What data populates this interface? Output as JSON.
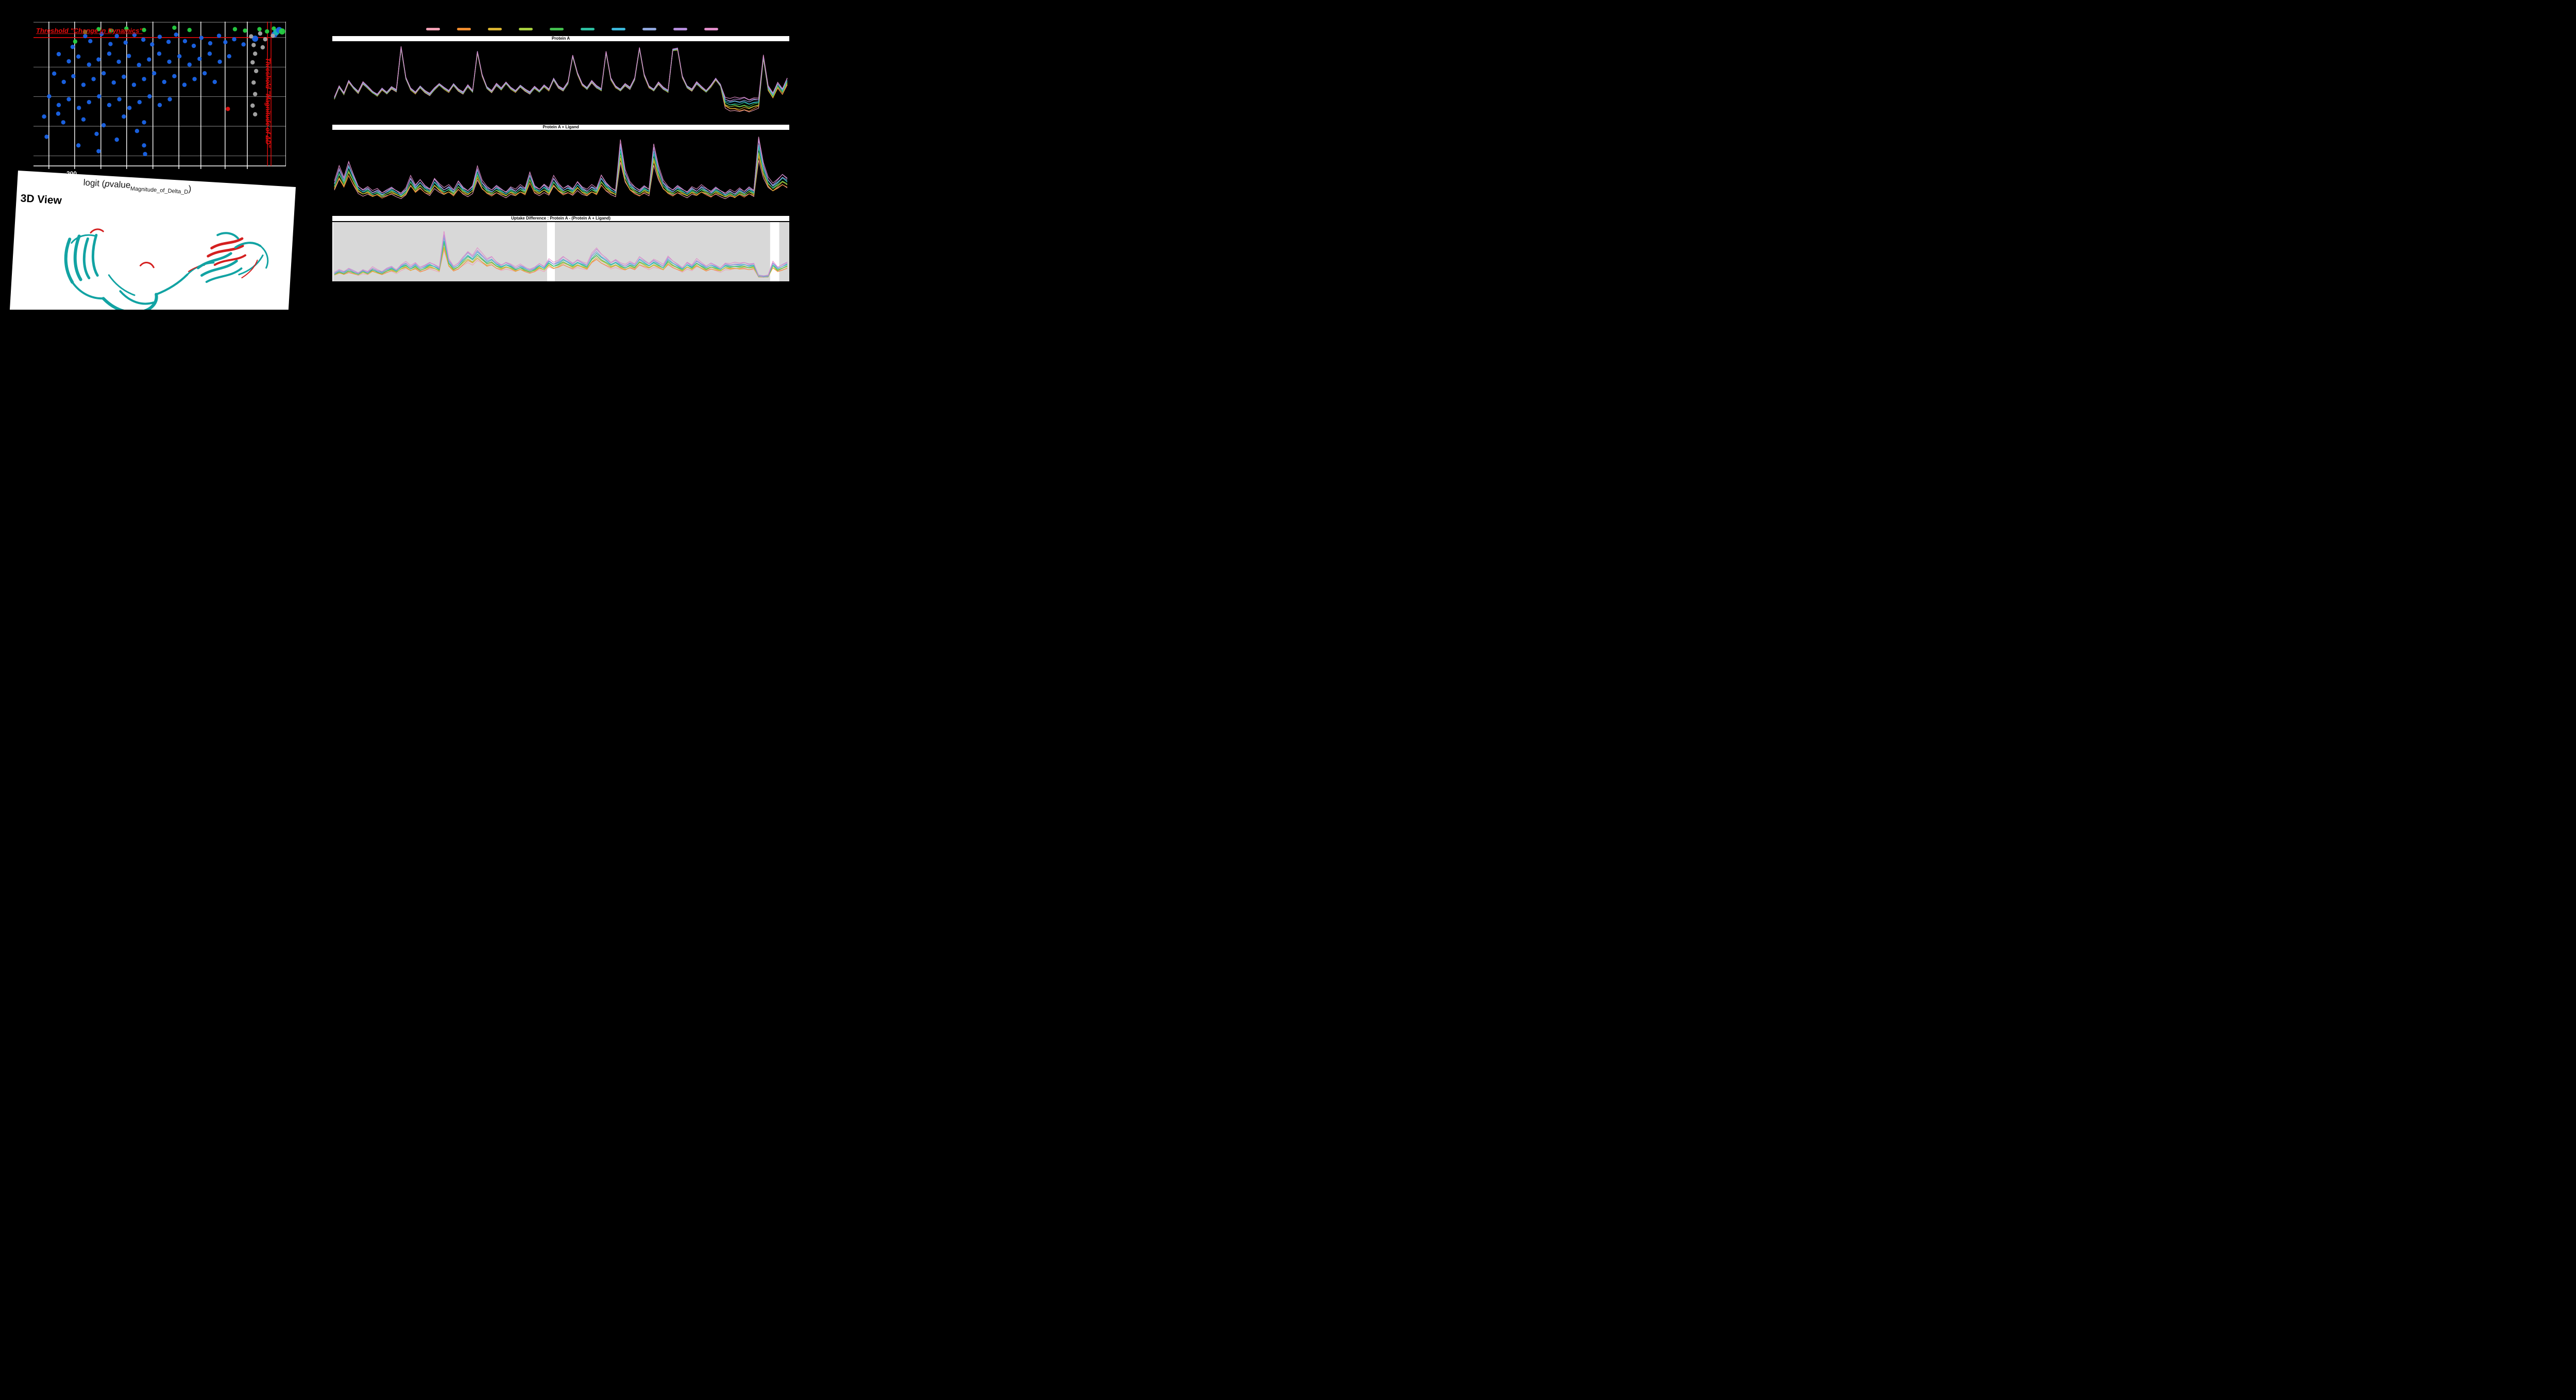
{
  "palette": [
    "#f2a0b4",
    "#f08c2e",
    "#d9b330",
    "#a8cf3e",
    "#43bf4e",
    "#2cbfa0",
    "#3ab6d9",
    "#8fa6dd",
    "#b48cdb",
    "#e08cc8"
  ],
  "view3d": {
    "title": "3D View",
    "ribbon_teal": "#12a3a3",
    "ribbon_red": "#d42020"
  },
  "chart_data": [
    {
      "type": "scatter",
      "threshold_label_h": "Threshold \"Change in Dynamics\"",
      "threshold_label_v": "Threshold \"Magnitude of ΔD\"",
      "x_tick_label": "−200",
      "xlabel": {
        "pre": "logit (",
        "p": "p",
        "mid": "value",
        "sub": "Magnitude_of_Delta_D",
        "post": ")"
      },
      "colors": {
        "b": "#1a64e8",
        "g": "#27d042",
        "y": "#a9a9a9",
        "r": "#e81212",
        "t": "#16b8ae",
        "threshold": "#e80c0c",
        "grid": "#ffffff"
      },
      "threshold_y": 0.11,
      "threshold_x": [
        0.927,
        0.941
      ],
      "grid_x": [
        0.061,
        0.163,
        0.267,
        0.369,
        0.473,
        0.576,
        0.663,
        0.759,
        0.847
      ],
      "grid_y": [
        0.004,
        0.11,
        0.315,
        0.52,
        0.725,
        0.93
      ],
      "points": [
        [
          0.155,
          0.175,
          "b"
        ],
        [
          0.205,
          0.1,
          "b"
        ],
        [
          0.225,
          0.135,
          "b"
        ],
        [
          0.27,
          0.085,
          "b"
        ],
        [
          0.305,
          0.155,
          "b"
        ],
        [
          0.33,
          0.1,
          "b"
        ],
        [
          0.365,
          0.145,
          "b"
        ],
        [
          0.4,
          0.092,
          "b"
        ],
        [
          0.435,
          0.125,
          "b"
        ],
        [
          0.47,
          0.158,
          "b"
        ],
        [
          0.5,
          0.105,
          "b"
        ],
        [
          0.535,
          0.14,
          "b"
        ],
        [
          0.565,
          0.09,
          "b"
        ],
        [
          0.6,
          0.135,
          "b"
        ],
        [
          0.635,
          0.168,
          "b"
        ],
        [
          0.665,
          0.112,
          "b"
        ],
        [
          0.7,
          0.15,
          "b"
        ],
        [
          0.735,
          0.098,
          "b"
        ],
        [
          0.76,
          0.142,
          "b"
        ],
        [
          0.795,
          0.122,
          "b"
        ],
        [
          0.1,
          0.225,
          "b"
        ],
        [
          0.14,
          0.275,
          "b"
        ],
        [
          0.178,
          0.242,
          "b"
        ],
        [
          0.22,
          0.298,
          "b"
        ],
        [
          0.258,
          0.262,
          "b"
        ],
        [
          0.3,
          0.222,
          "b"
        ],
        [
          0.338,
          0.278,
          "b"
        ],
        [
          0.378,
          0.238,
          "b"
        ],
        [
          0.418,
          0.3,
          "b"
        ],
        [
          0.458,
          0.262,
          "b"
        ],
        [
          0.498,
          0.222,
          "b"
        ],
        [
          0.538,
          0.278,
          "b"
        ],
        [
          0.578,
          0.24,
          "b"
        ],
        [
          0.618,
          0.298,
          "b"
        ],
        [
          0.658,
          0.258,
          "b"
        ],
        [
          0.698,
          0.222,
          "b"
        ],
        [
          0.738,
          0.278,
          "b"
        ],
        [
          0.775,
          0.24,
          "b"
        ],
        [
          0.082,
          0.36,
          "b"
        ],
        [
          0.12,
          0.418,
          "b"
        ],
        [
          0.158,
          0.378,
          "b"
        ],
        [
          0.198,
          0.438,
          "b"
        ],
        [
          0.238,
          0.398,
          "b"
        ],
        [
          0.278,
          0.358,
          "b"
        ],
        [
          0.318,
          0.422,
          "b"
        ],
        [
          0.358,
          0.382,
          "b"
        ],
        [
          0.398,
          0.438,
          "b"
        ],
        [
          0.438,
          0.398,
          "b"
        ],
        [
          0.478,
          0.358,
          "b"
        ],
        [
          0.518,
          0.418,
          "b"
        ],
        [
          0.558,
          0.378,
          "b"
        ],
        [
          0.598,
          0.438,
          "b"
        ],
        [
          0.638,
          0.398,
          "b"
        ],
        [
          0.678,
          0.358,
          "b"
        ],
        [
          0.718,
          0.418,
          "b"
        ],
        [
          0.062,
          0.518,
          "b"
        ],
        [
          0.1,
          0.578,
          "b"
        ],
        [
          0.14,
          0.538,
          "b"
        ],
        [
          0.18,
          0.598,
          "b"
        ],
        [
          0.22,
          0.558,
          "b"
        ],
        [
          0.26,
          0.518,
          "b"
        ],
        [
          0.3,
          0.578,
          "b"
        ],
        [
          0.34,
          0.538,
          "b"
        ],
        [
          0.38,
          0.598,
          "b"
        ],
        [
          0.42,
          0.558,
          "b"
        ],
        [
          0.46,
          0.518,
          "b"
        ],
        [
          0.5,
          0.578,
          "b"
        ],
        [
          0.54,
          0.538,
          "b"
        ],
        [
          0.042,
          0.658,
          "b"
        ],
        [
          0.118,
          0.698,
          "b"
        ],
        [
          0.198,
          0.678,
          "b"
        ],
        [
          0.278,
          0.718,
          "b"
        ],
        [
          0.358,
          0.658,
          "b"
        ],
        [
          0.438,
          0.698,
          "b"
        ],
        [
          0.25,
          0.778,
          "b"
        ],
        [
          0.33,
          0.818,
          "b"
        ],
        [
          0.41,
          0.758,
          "b"
        ],
        [
          0.178,
          0.858,
          "b"
        ],
        [
          0.258,
          0.898,
          "b"
        ],
        [
          0.438,
          0.858,
          "b"
        ],
        [
          0.442,
          0.918,
          "b"
        ],
        [
          0.098,
          0.638,
          "b"
        ],
        [
          0.052,
          0.798,
          "b"
        ],
        [
          0.832,
          0.158,
          "b"
        ],
        [
          0.878,
          0.118,
          "b",
          2
        ],
        [
          0.955,
          0.088,
          "b",
          2
        ],
        [
          0.862,
          0.102,
          "y"
        ],
        [
          0.872,
          0.162,
          "y"
        ],
        [
          0.878,
          0.222,
          "y"
        ],
        [
          0.868,
          0.282,
          "y"
        ],
        [
          0.882,
          0.342,
          "y"
        ],
        [
          0.872,
          0.422,
          "y"
        ],
        [
          0.878,
          0.502,
          "y"
        ],
        [
          0.868,
          0.582,
          "y"
        ],
        [
          0.878,
          0.642,
          "y"
        ],
        [
          0.898,
          0.082,
          "y"
        ],
        [
          0.918,
          0.122,
          "y"
        ],
        [
          0.948,
          0.098,
          "y"
        ],
        [
          0.968,
          0.062,
          "y"
        ],
        [
          0.908,
          0.178,
          "y"
        ],
        [
          0.165,
          0.138,
          "g"
        ],
        [
          0.205,
          0.072,
          "g"
        ],
        [
          0.258,
          0.052,
          "g"
        ],
        [
          0.308,
          0.062,
          "g"
        ],
        [
          0.368,
          0.048,
          "g"
        ],
        [
          0.438,
          0.058,
          "g"
        ],
        [
          0.558,
          0.042,
          "g"
        ],
        [
          0.618,
          0.058,
          "g"
        ],
        [
          0.798,
          0.052,
          "g"
        ],
        [
          0.838,
          0.062,
          "g"
        ],
        [
          0.895,
          0.052,
          "g"
        ],
        [
          0.925,
          0.068,
          "g"
        ],
        [
          0.952,
          0.048,
          "g"
        ],
        [
          0.77,
          0.605,
          "r"
        ],
        [
          0.962,
          0.072,
          "t",
          2
        ],
        [
          0.973,
          0.058,
          "b",
          2
        ],
        [
          0.985,
          0.068,
          "g",
          2
        ]
      ]
    },
    {
      "type": "line",
      "title": "Protein A",
      "mode": "fan",
      "fan_default": 0.02,
      "fan_overrides": [
        [
          82,
          0.13
        ],
        [
          83,
          0.15
        ],
        [
          84,
          0.17
        ],
        [
          85,
          0.18
        ],
        [
          86,
          0.18
        ],
        [
          87,
          0.17
        ],
        [
          88,
          0.16
        ],
        [
          89,
          0.12
        ],
        [
          90,
          0.04
        ],
        [
          91,
          0.06
        ],
        [
          92,
          0.07
        ],
        [
          93,
          0.08
        ],
        [
          94,
          0.08
        ],
        [
          95,
          0.09
        ]
      ],
      "base": [
        0.3,
        0.45,
        0.36,
        0.52,
        0.44,
        0.38,
        0.5,
        0.44,
        0.38,
        0.34,
        0.42,
        0.37,
        0.44,
        0.4,
        0.96,
        0.56,
        0.42,
        0.37,
        0.45,
        0.39,
        0.35,
        0.42,
        0.48,
        0.43,
        0.39,
        0.48,
        0.41,
        0.37,
        0.46,
        0.39,
        0.9,
        0.6,
        0.44,
        0.39,
        0.48,
        0.42,
        0.5,
        0.43,
        0.39,
        0.46,
        0.41,
        0.37,
        0.44,
        0.39,
        0.46,
        0.41,
        0.55,
        0.45,
        0.41,
        0.5,
        0.85,
        0.62,
        0.48,
        0.43,
        0.52,
        0.45,
        0.41,
        0.9,
        0.55,
        0.45,
        0.41,
        0.48,
        0.43,
        0.55,
        0.95,
        0.6,
        0.45,
        0.41,
        0.5,
        0.43,
        0.39,
        0.93,
        0.94,
        0.58,
        0.45,
        0.41,
        0.5,
        0.44,
        0.39,
        0.46,
        0.55,
        0.47,
        0.3,
        0.28,
        0.3,
        0.29,
        0.31,
        0.28,
        0.3,
        0.29,
        0.85,
        0.45,
        0.36,
        0.5,
        0.42,
        0.56
      ]
    },
    {
      "type": "line",
      "title": "Protein A + Ligand",
      "mode": "scale",
      "smin": 0.68,
      "base": [
        0.35,
        0.55,
        0.4,
        0.62,
        0.45,
        0.3,
        0.25,
        0.28,
        0.22,
        0.25,
        0.2,
        0.24,
        0.28,
        0.24,
        0.2,
        0.26,
        0.42,
        0.3,
        0.38,
        0.3,
        0.26,
        0.4,
        0.32,
        0.26,
        0.3,
        0.24,
        0.36,
        0.28,
        0.24,
        0.3,
        0.55,
        0.36,
        0.28,
        0.24,
        0.3,
        0.26,
        0.22,
        0.28,
        0.24,
        0.3,
        0.26,
        0.48,
        0.3,
        0.26,
        0.32,
        0.26,
        0.42,
        0.32,
        0.26,
        0.3,
        0.26,
        0.36,
        0.28,
        0.24,
        0.3,
        0.26,
        0.44,
        0.34,
        0.28,
        0.24,
        0.9,
        0.5,
        0.34,
        0.28,
        0.24,
        0.3,
        0.26,
        0.85,
        0.55,
        0.36,
        0.28,
        0.24,
        0.3,
        0.26,
        0.22,
        0.28,
        0.24,
        0.3,
        0.26,
        0.22,
        0.28,
        0.24,
        0.2,
        0.24,
        0.2,
        0.26,
        0.22,
        0.28,
        0.24,
        0.95,
        0.6,
        0.4,
        0.32,
        0.38,
        0.45,
        0.4
      ]
    },
    {
      "type": "line",
      "title": "Uptake Difference : Protein A - (Protein A + Ligand)",
      "mode": "scale",
      "smin": 0.6,
      "bg_color": "#d8d8d8",
      "bg_rects": [
        {
          "x0": 0.002,
          "x1": 0.47
        },
        {
          "x0": 0.487,
          "x1": 0.958
        },
        {
          "x0": 0.978,
          "x1": 1.0
        }
      ],
      "base": [
        0.1,
        0.15,
        0.12,
        0.18,
        0.14,
        0.1,
        0.16,
        0.12,
        0.2,
        0.15,
        0.12,
        0.18,
        0.22,
        0.16,
        0.25,
        0.3,
        0.22,
        0.28,
        0.2,
        0.24,
        0.3,
        0.26,
        0.2,
        0.85,
        0.35,
        0.22,
        0.28,
        0.4,
        0.5,
        0.42,
        0.55,
        0.45,
        0.35,
        0.4,
        0.3,
        0.25,
        0.3,
        0.26,
        0.2,
        0.25,
        0.2,
        0.16,
        0.2,
        0.28,
        0.22,
        0.35,
        0.28,
        0.32,
        0.4,
        0.34,
        0.28,
        0.35,
        0.3,
        0.26,
        0.45,
        0.55,
        0.45,
        0.38,
        0.3,
        0.35,
        0.28,
        0.24,
        0.3,
        0.26,
        0.4,
        0.34,
        0.28,
        0.35,
        0.3,
        0.24,
        0.4,
        0.32,
        0.26,
        0.2,
        0.3,
        0.24,
        0.35,
        0.28,
        0.22,
        0.28,
        0.24,
        0.2,
        0.28,
        0.26,
        0.28,
        0.27,
        0.29,
        0.26,
        0.28,
        0.05,
        0.04,
        0.05,
        0.3,
        0.2,
        0.25,
        0.3
      ]
    }
  ]
}
